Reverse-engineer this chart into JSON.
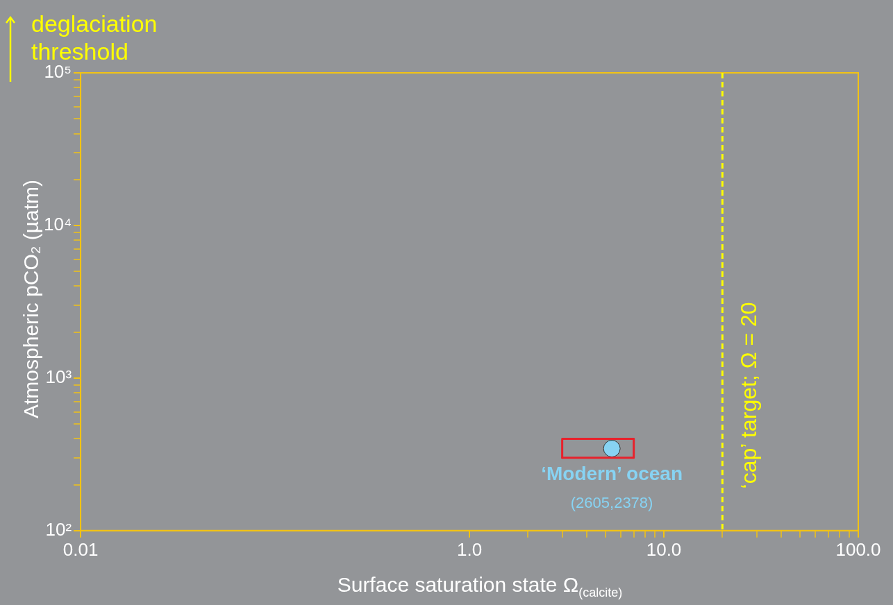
{
  "chart_data": {
    "type": "scatter",
    "xlabel": "Surface saturation state Ω$_{(calcite)}$",
    "ylabel": "Atmospheric pCO₂ (µatm)",
    "log": "xy",
    "marker": "circle",
    "xlim": [
      0.01,
      100
    ],
    "ylim": [
      100,
      100000
    ],
    "xticks": [
      {
        "value": 0.01,
        "label": "0.01"
      },
      {
        "value": 1,
        "label": "1.0"
      },
      {
        "value": 2,
        "label": null
      },
      {
        "value": 3,
        "label": null
      },
      {
        "value": 4,
        "label": null
      },
      {
        "value": 5,
        "label": null
      },
      {
        "value": 6,
        "label": null
      },
      {
        "value": 7,
        "label": null
      },
      {
        "value": 8,
        "label": null
      },
      {
        "value": 9,
        "label": null
      },
      {
        "value": 10,
        "label": "10.0"
      },
      {
        "value": 20,
        "label": null
      },
      {
        "value": 30,
        "label": null
      },
      {
        "value": 40,
        "label": null
      },
      {
        "value": 50,
        "label": null
      },
      {
        "value": 60,
        "label": null
      },
      {
        "value": 70,
        "label": null
      },
      {
        "value": 80,
        "label": null
      },
      {
        "value": 90,
        "label": null
      },
      {
        "value": 100,
        "label": "100.0"
      }
    ],
    "yticks": [
      {
        "value": 100,
        "label": "10²"
      },
      {
        "value": 200,
        "label": null
      },
      {
        "value": 300,
        "label": null
      },
      {
        "value": 400,
        "label": null
      },
      {
        "value": 500,
        "label": null
      },
      {
        "value": 600,
        "label": null
      },
      {
        "value": 700,
        "label": null
      },
      {
        "value": 800,
        "label": null
      },
      {
        "value": 900,
        "label": null
      },
      {
        "value": 1000,
        "label": "10³"
      },
      {
        "value": 2000,
        "label": null
      },
      {
        "value": 3000,
        "label": null
      },
      {
        "value": 4000,
        "label": null
      },
      {
        "value": 5000,
        "label": null
      },
      {
        "value": 6000,
        "label": null
      },
      {
        "value": 7000,
        "label": null
      },
      {
        "value": 8000,
        "label": null
      },
      {
        "value": 9000,
        "label": null
      },
      {
        "value": 10000,
        "label": "10⁴"
      },
      {
        "value": 20000,
        "label": null
      },
      {
        "value": 30000,
        "label": null
      },
      {
        "value": 40000,
        "label": null
      },
      {
        "value": 50000,
        "label": null
      },
      {
        "value": 60000,
        "label": null
      },
      {
        "value": 70000,
        "label": null
      },
      {
        "value": 80000,
        "label": null
      },
      {
        "value": 90000,
        "label": null
      },
      {
        "value": 100000,
        "label": "10⁵"
      }
    ],
    "series": [
      {
        "type": "line",
        "marker": "none",
        "line_style": "solid",
        "color": "#e8212b",
        "x": [
          3,
          3,
          7
        ],
        "values": [
          300,
          400,
          400
        ]
      },
      {
        "type": "line",
        "marker": "none",
        "line_style": "solid",
        "color": "#e8212b",
        "x": [
          3,
          7,
          7
        ],
        "values": [
          300,
          300,
          400
        ]
      },
      {
        "color": "#87d3f3",
        "x": [
          5.4
        ],
        "values": [
          345
        ]
      }
    ],
    "ref_lines": [
      {
        "axis": "x",
        "value": 20,
        "label": "‘cap’ target; Ω = 20",
        "color": "#ffff00",
        "line_style": "dashed"
      }
    ],
    "annotations": [
      {
        "text": "‘Modern’ ocean",
        "x": 5.4,
        "y": 345
      },
      {
        "text": "(2605,2378)",
        "x": 5.4,
        "y": 345
      },
      "deglaciation threshold"
    ]
  }
}
